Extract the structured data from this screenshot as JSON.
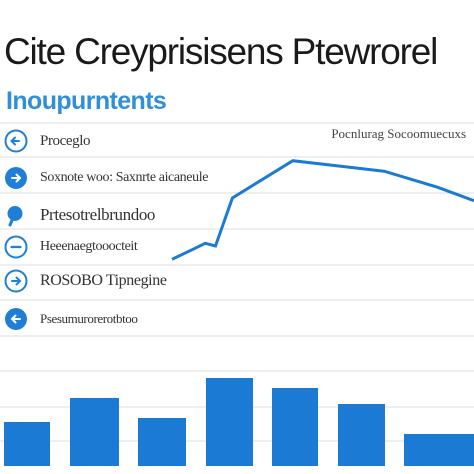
{
  "title": "Cite Creyprisisens Ptewrorel",
  "subtitle": "Inoupurntents",
  "top_right_label": "Pocnlurag Socoomuecuxs",
  "legend": [
    {
      "label": "Proceglo",
      "icon": "arrow-left-icon"
    },
    {
      "label": "Soxnote woo: Saxnrte aicaneule",
      "icon": "arrow-right-icon"
    },
    {
      "label": "Prtesotrelbrundoo",
      "icon": "search-icon"
    },
    {
      "label": "Heeenaegtooocteit",
      "icon": "minus-circle-icon"
    },
    {
      "label": "ROSOBO Tipnegine",
      "icon": "arrow-right-icon"
    },
    {
      "label": "Psesumurorerotbtoo",
      "icon": "arrow-left-icon"
    }
  ],
  "colors": {
    "bar": "#1a7ad4",
    "line": "#1a7ad4",
    "icon": "#1f7fd6",
    "grid": "#dcdcdc",
    "title": "#1a1a1a",
    "subtitle": "#2f8fd8"
  },
  "chart_data": {
    "type": "bar",
    "grid": true,
    "ylim": [
      0,
      160
    ],
    "bars": {
      "values": [
        22,
        34,
        24,
        44,
        39,
        31,
        16,
        16
      ]
    },
    "line": {
      "x": [
        0,
        0.37,
        0.55,
        0.72,
        1.0,
        2.0,
        3.52,
        4.4,
        5.0
      ],
      "y": [
        53,
        57,
        59,
        58,
        76,
        90,
        86,
        80,
        75
      ],
      "ylim": [
        40,
        100
      ],
      "xlim": [
        0,
        5
      ]
    }
  }
}
